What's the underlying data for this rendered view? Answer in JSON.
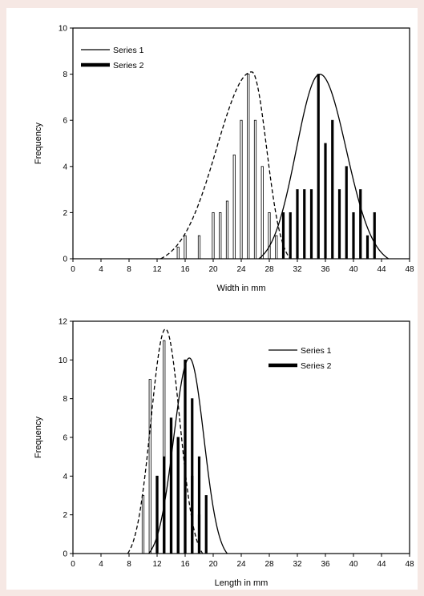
{
  "chart_data": [
    {
      "type": "bar",
      "xlabel": "Width in mm",
      "ylabel": "Frequency",
      "xlim": [
        0,
        48
      ],
      "ylim": [
        0,
        10
      ],
      "xticks": [
        0,
        4,
        8,
        12,
        16,
        20,
        24,
        28,
        32,
        36,
        40,
        44,
        48
      ],
      "yticks": [
        0,
        2,
        4,
        6,
        8,
        10
      ],
      "legend_position": "top-left",
      "colors": {
        "series1": "#000000",
        "series2": "#000000"
      },
      "series": [
        {
          "name": "Series 1",
          "style": "white bars with dashed fitted curve",
          "x": [
            15,
            16,
            18,
            20,
            21,
            22,
            23,
            24,
            25,
            26,
            27,
            28,
            29
          ],
          "values": [
            0.5,
            1,
            1,
            2,
            2,
            2.5,
            4.5,
            6,
            8,
            6,
            4,
            2,
            1
          ],
          "curve": {
            "mean": 25.5,
            "peak": 8.1,
            "left_base": 12.5,
            "right_base": 31
          }
        },
        {
          "name": "Series 2",
          "style": "black bars with solid fitted curve",
          "x": [
            30,
            31,
            32,
            33,
            34,
            35,
            36,
            37,
            38,
            39,
            40,
            41,
            42,
            43
          ],
          "values": [
            2,
            2,
            3,
            3,
            3,
            8,
            5,
            6,
            3,
            4,
            2,
            3,
            1,
            2
          ],
          "curve": {
            "mean": 35.2,
            "peak": 8.0,
            "left_base": 26.5,
            "right_base": 45
          }
        }
      ]
    },
    {
      "type": "bar",
      "xlabel": "Length in mm",
      "ylabel": "Frequency",
      "xlim": [
        0,
        48
      ],
      "ylim": [
        0,
        12
      ],
      "xticks": [
        0,
        4,
        8,
        12,
        16,
        20,
        24,
        28,
        32,
        36,
        40,
        44,
        48
      ],
      "yticks": [
        0,
        2,
        4,
        6,
        8,
        10,
        12
      ],
      "legend_position": "top-right",
      "colors": {
        "series1": "#000000",
        "series2": "#000000"
      },
      "series": [
        {
          "name": "Series 1",
          "style": "white bars with dashed fitted curve",
          "x": [
            10,
            11,
            12,
            13,
            14,
            15,
            16,
            17,
            18
          ],
          "values": [
            3,
            9,
            4,
            11,
            7,
            6,
            10,
            4,
            2
          ],
          "curve": {
            "mean": 13.2,
            "peak": 11.6,
            "left_base": 7.8,
            "right_base": 18.5
          }
        },
        {
          "name": "Series 2",
          "style": "black bars with solid fitted curve",
          "x": [
            12,
            13,
            14,
            15,
            16,
            17,
            18,
            19
          ],
          "values": [
            4,
            5,
            7,
            6,
            10,
            8,
            5,
            3
          ],
          "curve": {
            "mean": 16.6,
            "peak": 10.1,
            "left_base": 10.8,
            "right_base": 22
          }
        }
      ]
    }
  ]
}
